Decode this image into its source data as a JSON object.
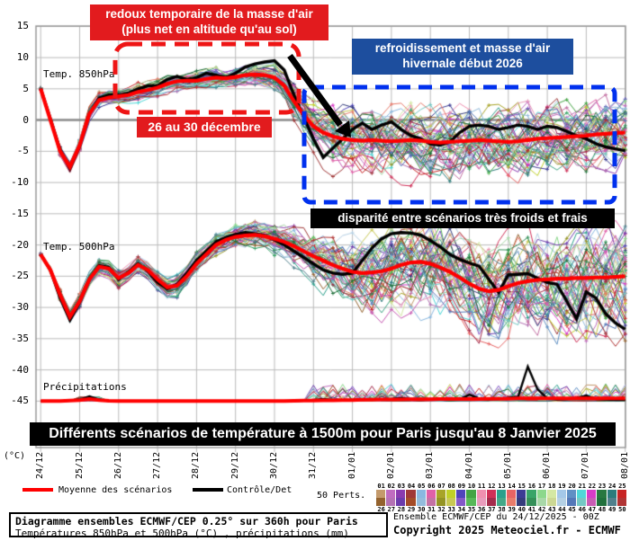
{
  "chart": {
    "y_axis": {
      "unit_label": "(°C)",
      "ticks": [
        "15",
        "10",
        "5",
        "0",
        "-5",
        "-10",
        "-15",
        "-20",
        "-25",
        "-30",
        "-35",
        "-40",
        "-45"
      ],
      "tick_values": [
        15,
        10,
        5,
        0,
        -5,
        -10,
        -15,
        -20,
        -25,
        -30,
        -35,
        -40,
        -45
      ]
    },
    "x_axis": {
      "ticks": [
        "24/12",
        "25/12",
        "26/12",
        "27/12",
        "28/12",
        "29/12",
        "30/12",
        "31/12",
        "01/01",
        "02/01",
        "03/01",
        "04/01",
        "05/01",
        "06/01",
        "07/01",
        "08/01"
      ]
    },
    "panel_labels": {
      "t850": "Temp. 850hPa",
      "t500": "Temp. 500hPa",
      "precip": "Précipitations"
    },
    "annotations": {
      "redoux": {
        "line1": "redoux temporaire de la masse d'air",
        "line2": "(plus net en altitude qu'au sol)",
        "bg": "#e21b1e"
      },
      "refroidissement": {
        "line1": "refroidissement et masse d'air",
        "line2": "hivernale début 2026",
        "bg": "#1d4e9e"
      },
      "period": {
        "text": "26 au 30 décembre",
        "bg": "#e21b1e"
      },
      "disparite": {
        "text": "disparité entre scénarios très froids et frais",
        "bg": "#000000"
      }
    },
    "title_bar": {
      "text": "Différents scénarios de température à 1500m pour Paris jusqu'au 8 Janvier 2025",
      "bg": "#000000",
      "fg": "#ffffff"
    },
    "grid_color": "#bbbbbb",
    "zero_line_color": "#8a8a8a",
    "border_color": "#999999"
  },
  "legend": {
    "mean_label": "Moyenne des scénarios",
    "mean_color": "#ff0000",
    "control_label": "Contrôle/Det",
    "control_color": "#000000",
    "perts_label": "50 Perts.",
    "pert_numbers_top": [
      "01",
      "02",
      "03",
      "04",
      "05",
      "06",
      "07",
      "08",
      "09",
      "10",
      "11",
      "12",
      "13",
      "14",
      "15",
      "16",
      "17",
      "18",
      "19",
      "20",
      "21",
      "22",
      "23",
      "24",
      "25"
    ],
    "pert_numbers_bottom": [
      "26",
      "27",
      "28",
      "29",
      "30",
      "31",
      "32",
      "33",
      "34",
      "35",
      "36",
      "37",
      "38",
      "39",
      "40",
      "41",
      "42",
      "43",
      "44",
      "45",
      "46",
      "47",
      "48",
      "49",
      "50"
    ],
    "pert_colors_top": [
      "#c49a6c",
      "#c06cc0",
      "#8a3ab0",
      "#a03838",
      "#8ab8e0",
      "#e060a8",
      "#a8a428",
      "#c0d028",
      "#5044bc",
      "#44a444",
      "#f090b0",
      "#d03058",
      "#2ca08c",
      "#e86464",
      "#3c3c94",
      "#38a468",
      "#8cd88c",
      "#d4e8a4",
      "#a4c8e8",
      "#6090c4",
      "#50d8d8",
      "#d83cc8",
      "#287840",
      "#2c7c7c",
      "#c82424"
    ],
    "pert_colors_bottom": [
      "#94622e",
      "#b472b4",
      "#6c3cac",
      "#a44c28",
      "#94bcdc",
      "#c472a4",
      "#949424",
      "#c8c854",
      "#8458c8",
      "#58b858",
      "#e89cbc",
      "#a42c4c",
      "#44a888",
      "#e87c6c",
      "#343c7c",
      "#349058",
      "#a8d8a8",
      "#ccd894",
      "#b4d0e4",
      "#5478b8",
      "#74c8c4",
      "#c85cb4",
      "#20703c",
      "#50808c",
      "#b03434"
    ]
  },
  "footer": {
    "left_line1": "Diagramme ensembles ECMWF/CEP 0.25° sur 360h pour Paris",
    "left_line2": "Températures 850hPa et 500hPa (°C) , précipitations (mm)",
    "right_line1": "Ensemble ECMWF/CEP du 24/12/2025 - 00Z",
    "right_line2": "Copyright 2025 Meteociel.fr - ECMWF"
  },
  "chart_data": {
    "type": "line",
    "title": "Différents scénarios de température à 1500m pour Paris jusqu'au 8 Janvier 2025",
    "x_unit": "6-hour steps, 24/12 00Z to 08/01 00Z (360h)",
    "x_dates": [
      "24/12",
      "25/12",
      "26/12",
      "27/12",
      "28/12",
      "29/12",
      "30/12",
      "31/12",
      "01/01",
      "02/01",
      "03/01",
      "04/01",
      "05/01",
      "06/01",
      "07/01",
      "08/01"
    ],
    "ylim": [
      -45,
      15
    ],
    "grid": true,
    "series": [
      {
        "name": "Moyenne des scénarios (Temp. 850hPa, °C)",
        "color": "#ff0000",
        "values": [
          5.0,
          0.0,
          -5.0,
          -7.5,
          -4.0,
          1.0,
          3.2,
          3.6,
          3.8,
          4.0,
          4.5,
          4.8,
          5.2,
          5.8,
          6.2,
          6.3,
          6.3,
          6.6,
          6.8,
          6.7,
          6.9,
          7.2,
          7.3,
          7.2,
          6.8,
          5.5,
          3.0,
          0.8,
          -1.0,
          -2.0,
          -2.6,
          -3.0,
          -3.2,
          -3.3,
          -3.2,
          -3.3,
          -3.4,
          -3.3,
          -3.2,
          -3.3,
          -3.5,
          -3.6,
          -3.5,
          -3.4,
          -3.3,
          -3.2,
          -3.3,
          -3.4,
          -3.5,
          -3.4,
          -3.2,
          -3.0,
          -2.9,
          -2.8,
          -2.7,
          -2.6,
          -2.5,
          -2.3,
          -2.2,
          -2.1,
          -2.0
        ]
      },
      {
        "name": "Contrôle/Det (Temp. 850hPa, °C)",
        "color": "#000000",
        "values": [
          5.0,
          0.2,
          -4.8,
          -7.8,
          -4.2,
          1.0,
          3.5,
          4.0,
          4.0,
          4.3,
          5.0,
          5.5,
          5.5,
          6.5,
          7.0,
          6.5,
          6.8,
          7.5,
          7.2,
          6.8,
          7.5,
          8.5,
          9.0,
          9.3,
          9.5,
          8.0,
          4.0,
          0.5,
          -3.0,
          -6.0,
          -4.5,
          -3.0,
          -1.5,
          -0.5,
          -1.5,
          -0.8,
          -0.3,
          -1.5,
          -2.5,
          -3.0,
          -3.8,
          -4.0,
          -3.5,
          -2.0,
          -1.0,
          -0.8,
          -1.0,
          -1.5,
          -1.2,
          -0.8,
          -1.0,
          -1.5,
          -1.0,
          -1.2,
          -1.8,
          -2.5,
          -3.0,
          -3.8,
          -4.3,
          -4.6,
          -4.9
        ]
      },
      {
        "name": "Moyenne des scénarios (Temp. 500hPa, °C)",
        "color": "#ff0000",
        "values": [
          -21.5,
          -24.0,
          -28.0,
          -31.5,
          -29.0,
          -25.5,
          -23.5,
          -23.8,
          -25.3,
          -24.5,
          -23.2,
          -24.0,
          -25.5,
          -26.8,
          -26.5,
          -25.0,
          -23.0,
          -21.5,
          -20.0,
          -19.2,
          -18.7,
          -18.5,
          -18.4,
          -18.6,
          -19.0,
          -19.5,
          -20.2,
          -21.0,
          -21.8,
          -22.5,
          -23.2,
          -23.8,
          -24.3,
          -24.5,
          -24.4,
          -24.2,
          -23.8,
          -23.2,
          -22.8,
          -22.7,
          -23.0,
          -23.6,
          -24.3,
          -25.2,
          -26.2,
          -27.0,
          -27.4,
          -27.2,
          -26.6,
          -26.1,
          -25.8,
          -25.6,
          -25.5,
          -25.4,
          -25.4,
          -25.3,
          -25.3,
          -25.2,
          -25.2,
          -25.1,
          -25.0
        ]
      },
      {
        "name": "Contrôle/Det (Temp. 500hPa, °C)",
        "color": "#000000",
        "values": [
          -21.5,
          -24.0,
          -28.5,
          -32.0,
          -29.2,
          -25.5,
          -23.3,
          -23.6,
          -25.5,
          -24.3,
          -23.0,
          -24.2,
          -26.0,
          -27.0,
          -26.3,
          -24.5,
          -22.5,
          -21.0,
          -19.5,
          -18.8,
          -18.3,
          -18.0,
          -18.2,
          -18.5,
          -19.2,
          -20.0,
          -21.0,
          -22.0,
          -23.0,
          -24.0,
          -24.5,
          -24.7,
          -24.5,
          -22.5,
          -20.5,
          -19.0,
          -18.2,
          -18.0,
          -18.1,
          -18.4,
          -19.3,
          -20.3,
          -21.5,
          -22.3,
          -22.9,
          -23.4,
          -25.5,
          -27.6,
          -24.8,
          -24.7,
          -24.6,
          -25.3,
          -26.0,
          -26.3,
          -29.0,
          -31.8,
          -27.5,
          -28.5,
          -31.0,
          -32.5,
          -33.5
        ]
      },
      {
        "name": "Moyenne des scénarios (précipitations, mm)",
        "color": "#ff0000",
        "values": [
          0,
          0,
          0,
          0.1,
          0.2,
          0.4,
          0.2,
          0.05,
          0,
          0,
          0,
          0,
          0,
          0,
          0,
          0,
          0,
          0,
          0,
          0,
          0,
          0,
          0,
          0,
          0,
          0,
          0.05,
          0.1,
          0.1,
          0.15,
          0.15,
          0.2,
          0.2,
          0.25,
          0.25,
          0.3,
          0.3,
          0.3,
          0.35,
          0.35,
          0.35,
          0.4,
          0.4,
          0.4,
          0.4,
          0.4,
          0.45,
          0.45,
          0.45,
          0.5,
          0.5,
          0.5,
          0.5,
          0.5,
          0.5,
          0.5,
          0.5,
          0.5,
          0.5,
          0.5,
          0.5
        ]
      },
      {
        "name": "Contrôle/Det (précipitations, mm)",
        "color": "#000000",
        "values": [
          0,
          0,
          0,
          0.1,
          0.3,
          0.9,
          0.3,
          0,
          0,
          0,
          0,
          0,
          0,
          0,
          0,
          0,
          0,
          0,
          0,
          0,
          0,
          0,
          0,
          0,
          0,
          0,
          0,
          0.1,
          0.2,
          0.4,
          0.2,
          0.1,
          0.2,
          0.3,
          0.2,
          0.3,
          0.4,
          0.6,
          0.3,
          0.2,
          0.3,
          0.5,
          0.4,
          0.3,
          1.2,
          0.5,
          0.3,
          0.4,
          0.6,
          0.8,
          6.4,
          2.2,
          0.5,
          0.3,
          0.4,
          0.6,
          1.0,
          0.4,
          0.3,
          0.2,
          0.2
        ]
      }
    ],
    "ensemble": {
      "count": 50,
      "seed": 20251224,
      "spread_850": [
        0.3,
        0.5,
        0.7,
        0.8,
        0.9,
        1.0,
        1.1,
        1.1,
        1.2,
        1.2,
        1.2,
        1.2,
        1.2,
        1.2,
        1.2,
        1.2,
        1.3,
        1.3,
        1.3,
        1.3,
        1.4,
        1.4,
        1.5,
        1.6,
        1.8,
        2.2,
        2.6,
        3.0,
        3.5,
        4.0,
        4.3,
        4.5,
        4.6,
        4.7,
        4.7,
        4.8,
        4.8,
        4.8,
        4.9,
        4.9,
        4.9,
        5.0,
        5.0,
        5.0,
        5.0,
        5.0,
        5.0,
        5.0,
        5.0,
        5.0,
        5.0,
        5.0,
        5.0,
        5.0,
        5.0,
        5.0,
        5.0,
        5.0,
        5.0,
        5.0,
        5.0
      ],
      "spread_500": [
        0.6,
        0.8,
        1.0,
        1.0,
        1.0,
        1.0,
        1.1,
        1.1,
        1.2,
        1.2,
        1.2,
        1.3,
        1.3,
        1.4,
        1.4,
        1.5,
        1.5,
        1.5,
        1.6,
        1.6,
        1.7,
        1.8,
        1.9,
        2.0,
        2.2,
        2.4,
        2.7,
        3.0,
        3.4,
        3.8,
        4.2,
        4.6,
        5.0,
        5.4,
        5.7,
        6.0,
        6.2,
        6.4,
        6.6,
        6.8,
        7.0,
        7.1,
        7.2,
        7.3,
        7.4,
        7.5,
        7.5,
        7.6,
        7.6,
        7.7,
        7.7,
        7.8,
        7.8,
        7.8,
        7.9,
        7.9,
        8.0,
        8.0,
        8.0,
        8.0,
        8.0
      ]
    }
  }
}
